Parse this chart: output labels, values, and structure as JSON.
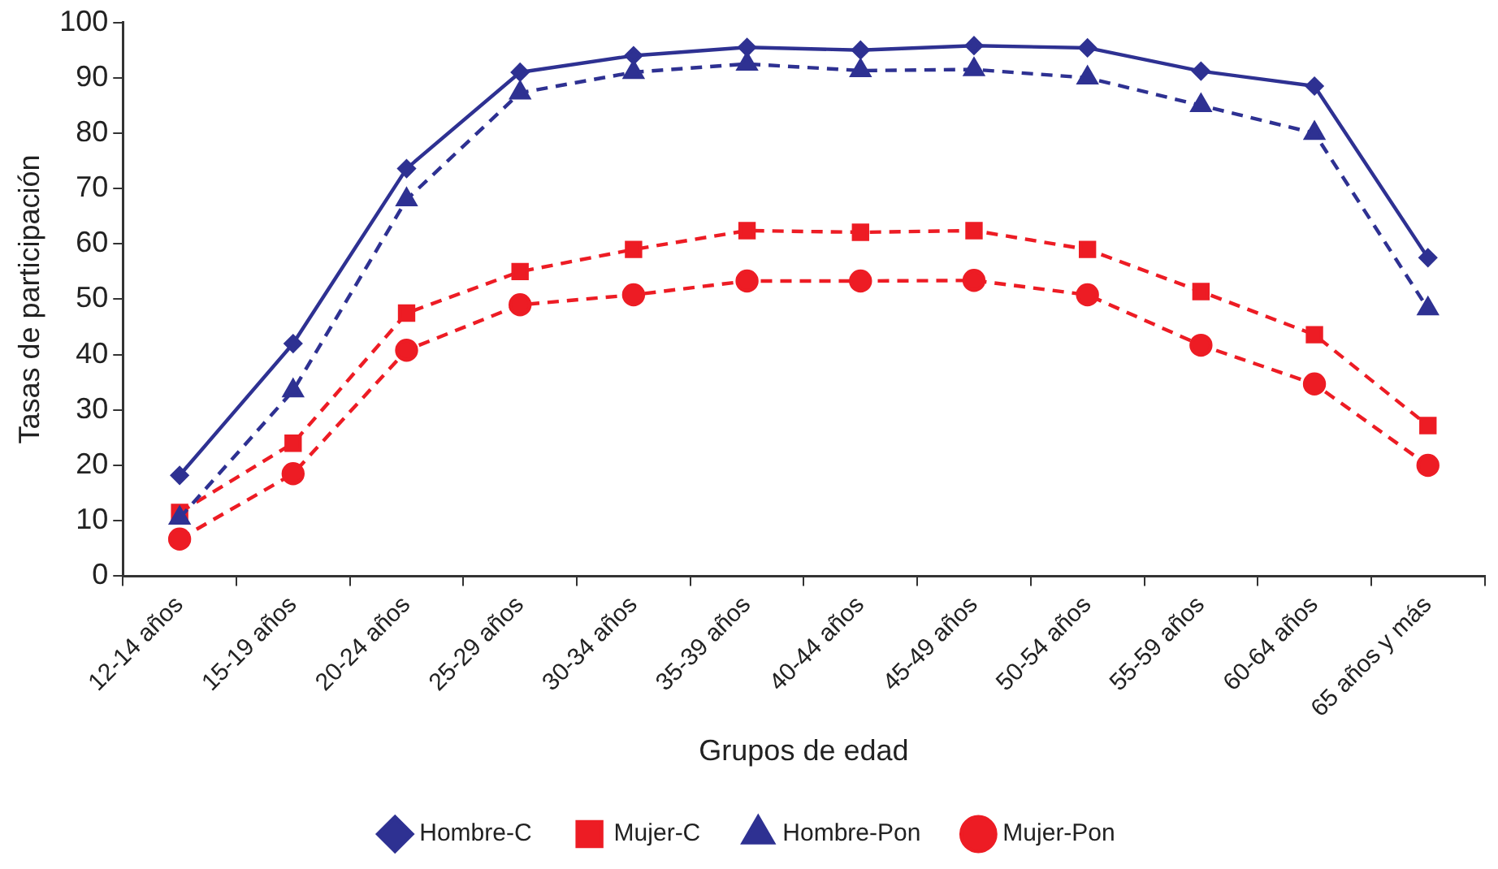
{
  "chart_data": {
    "type": "line",
    "xlabel": "Grupos de edad",
    "ylabel": "Tasas de participación",
    "categories": [
      "12-14 años",
      "15-19 años",
      "20-24 años",
      "25-29 años",
      "30-34 años",
      "35-39 años",
      "40-44 años",
      "45-49 años",
      "50-54 años",
      "55-59 años",
      "60-64 años",
      "65 años y más"
    ],
    "series": [
      {
        "name": "Hombre-C",
        "color": "#2e3192",
        "marker": "diamond",
        "line_style": "solid",
        "values": [
          18.2,
          42,
          73.6,
          91,
          94,
          95.5,
          95,
          95.8,
          95.4,
          91.2,
          88.5,
          57.5
        ]
      },
      {
        "name": "Mujer-C",
        "color": "#ed1c24",
        "marker": "square",
        "line_style": "dashed",
        "values": [
          11.5,
          24,
          47.5,
          55,
          59,
          62.4,
          62.1,
          62.4,
          59,
          51.4,
          43.6,
          27.2
        ]
      },
      {
        "name": "Hombre-Pon",
        "color": "#2e3192",
        "marker": "triangle",
        "line_style": "dashed",
        "values": [
          10.5,
          33.5,
          68,
          87.3,
          91,
          92.5,
          91.3,
          91.5,
          90,
          85,
          80,
          48.3
        ]
      },
      {
        "name": "Mujer-Pon",
        "color": "#ed1c24",
        "marker": "circle",
        "line_style": "dashed",
        "values": [
          6.7,
          18.5,
          40.8,
          49,
          50.8,
          53.3,
          53.3,
          53.4,
          50.8,
          41.7,
          34.7,
          20
        ]
      }
    ],
    "ylim": [
      0,
      100
    ],
    "yticks": [
      0,
      10,
      20,
      30,
      40,
      50,
      60,
      70,
      80,
      90,
      100
    ],
    "grid": false,
    "legend": "bottom"
  }
}
